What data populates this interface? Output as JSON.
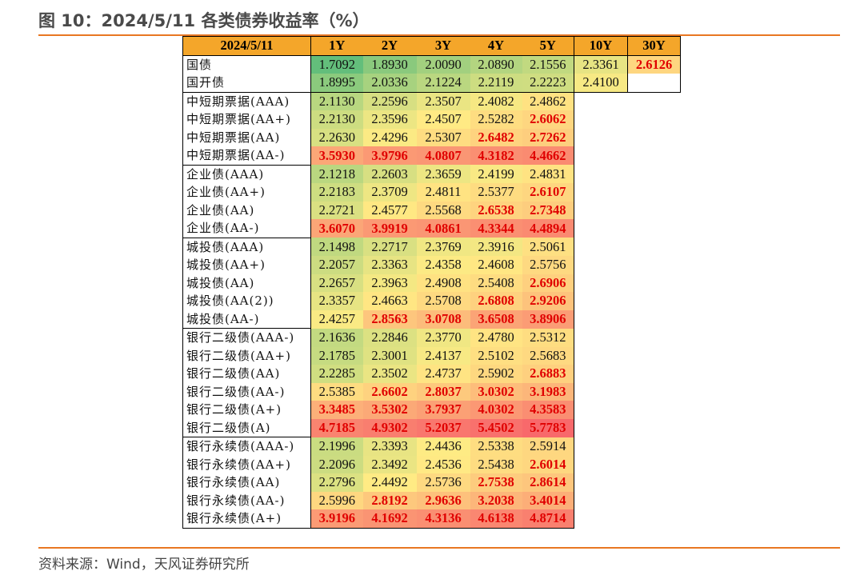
{
  "title": "图 10：2024/5/11 各类债券收益率（%）",
  "source": "资料来源：Wind，天风证券研究所",
  "table": {
    "headers": [
      "2024/5/11",
      "1Y",
      "2Y",
      "3Y",
      "4Y",
      "5Y",
      "10Y",
      "30Y"
    ],
    "groups": [
      [
        {
          "label": "国债",
          "values": [
            "1.7092",
            "1.8930",
            "2.0090",
            "2.0890",
            "2.1556",
            "2.3361",
            "2.6126"
          ]
        },
        {
          "label": "国开债",
          "values": [
            "1.8995",
            "2.0336",
            "2.1224",
            "2.2119",
            "2.2223",
            "2.4100",
            ""
          ]
        }
      ],
      [
        {
          "label": "中短期票据(AAA)",
          "values": [
            "2.1130",
            "2.2596",
            "2.3507",
            "2.4082",
            "2.4862"
          ]
        },
        {
          "label": "中短期票据(AA+)",
          "values": [
            "2.2130",
            "2.3596",
            "2.4507",
            "2.5282",
            "2.6062"
          ]
        },
        {
          "label": "中短期票据(AA)",
          "values": [
            "2.2630",
            "2.4296",
            "2.5307",
            "2.6482",
            "2.7262"
          ]
        },
        {
          "label": "中短期票据(AA-)",
          "values": [
            "3.5930",
            "3.9796",
            "4.0807",
            "4.3182",
            "4.4662"
          ]
        }
      ],
      [
        {
          "label": "企业债(AAA)",
          "values": [
            "2.1218",
            "2.2603",
            "2.3659",
            "2.4199",
            "2.4831"
          ]
        },
        {
          "label": "企业债(AA+)",
          "values": [
            "2.2183",
            "2.3709",
            "2.4811",
            "2.5377",
            "2.6107"
          ]
        },
        {
          "label": "企业债(AA)",
          "values": [
            "2.2721",
            "2.4577",
            "2.5568",
            "2.6538",
            "2.7348"
          ]
        },
        {
          "label": "企业债(AA-)",
          "values": [
            "3.6070",
            "3.9919",
            "4.0861",
            "4.3344",
            "4.4894"
          ]
        }
      ],
      [
        {
          "label": "城投债(AAA)",
          "values": [
            "2.1498",
            "2.2717",
            "2.3769",
            "2.3916",
            "2.5061"
          ]
        },
        {
          "label": "城投债(AA+)",
          "values": [
            "2.2057",
            "2.3363",
            "2.4358",
            "2.4608",
            "2.5756"
          ]
        },
        {
          "label": "城投债(AA)",
          "values": [
            "2.2657",
            "2.3963",
            "2.4908",
            "2.5408",
            "2.6906"
          ]
        },
        {
          "label": "城投债(AA(2))",
          "values": [
            "2.3357",
            "2.4663",
            "2.5708",
            "2.6808",
            "2.9206"
          ]
        },
        {
          "label": "城投债(AA-)",
          "values": [
            "2.4257",
            "2.8563",
            "3.0708",
            "3.6508",
            "3.8906"
          ]
        }
      ],
      [
        {
          "label": "银行二级债(AAA-)",
          "values": [
            "2.1636",
            "2.2846",
            "2.3770",
            "2.4780",
            "2.5312"
          ]
        },
        {
          "label": "银行二级债(AA+)",
          "values": [
            "2.1785",
            "2.3001",
            "2.4137",
            "2.5102",
            "2.5683"
          ]
        },
        {
          "label": "银行二级债(AA)",
          "values": [
            "2.2285",
            "2.3502",
            "2.4737",
            "2.5902",
            "2.6883"
          ]
        },
        {
          "label": "银行二级债(AA-)",
          "values": [
            "2.5385",
            "2.6602",
            "2.8037",
            "3.0302",
            "3.1983"
          ]
        },
        {
          "label": "银行二级债(A+)",
          "values": [
            "3.3485",
            "3.5302",
            "3.7937",
            "4.0302",
            "4.3583"
          ]
        },
        {
          "label": "银行二级债(A)",
          "values": [
            "4.7185",
            "4.9302",
            "5.2037",
            "5.4502",
            "5.7783"
          ]
        }
      ],
      [
        {
          "label": "银行永续债(AAA-)",
          "values": [
            "2.1996",
            "2.3393",
            "2.4436",
            "2.5338",
            "2.5914"
          ]
        },
        {
          "label": "银行永续债(AA+)",
          "values": [
            "2.2096",
            "2.3492",
            "2.4536",
            "2.5438",
            "2.6014"
          ]
        },
        {
          "label": "银行永续债(AA)",
          "values": [
            "2.2796",
            "2.4492",
            "2.5736",
            "2.7538",
            "2.8614"
          ]
        },
        {
          "label": "银行永续债(AA-)",
          "values": [
            "2.5996",
            "2.8192",
            "2.9636",
            "3.2038",
            "3.4014"
          ]
        },
        {
          "label": "银行永续债(A+)",
          "values": [
            "3.9196",
            "4.1692",
            "4.3136",
            "4.6138",
            "4.8714"
          ]
        }
      ]
    ],
    "highlight_threshold": 2.6,
    "colors": {
      "header_bg": "#f4a62a",
      "accent_line": "#e87722",
      "scale_low": "#63be7b",
      "scale_mid": "#ffeb84",
      "scale_high": "#f8696b",
      "highlight_text": "#e00000"
    }
  }
}
